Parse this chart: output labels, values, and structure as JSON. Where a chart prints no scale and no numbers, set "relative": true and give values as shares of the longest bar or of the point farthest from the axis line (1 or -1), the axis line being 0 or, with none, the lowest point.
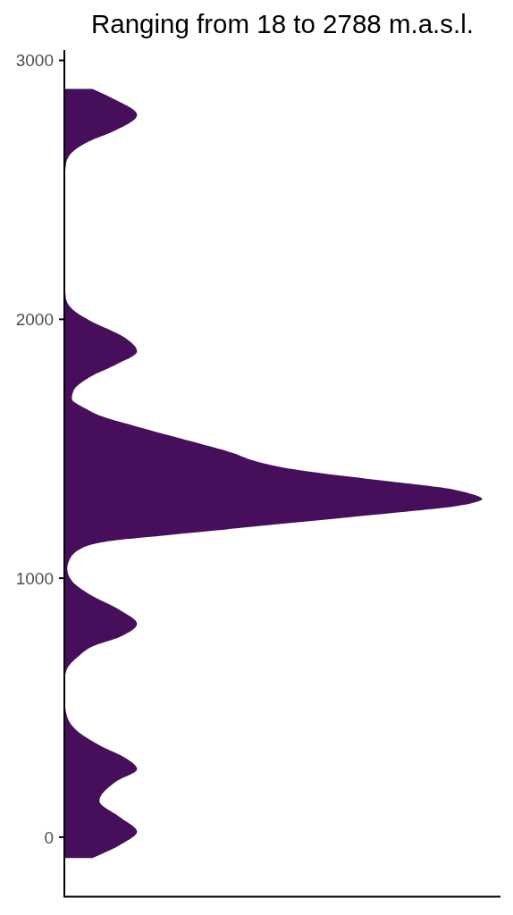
{
  "chart_data": {
    "type": "area",
    "title": "Ranging from 18 to 2788 m.a.s.l.",
    "orientation": "horizontal",
    "relative": true,
    "color": "#470e5b",
    "x": [
      -81,
      -24,
      21,
      76,
      140,
      216,
      263,
      303,
      355,
      417,
      469,
      545,
      610,
      648,
      700,
      736,
      774,
      824,
      876,
      938,
      990,
      1036,
      1070,
      1116,
      1151,
      1162,
      1185,
      1208,
      1231,
      1254,
      1279,
      1292,
      1306,
      1323,
      1346,
      1380,
      1416,
      1450,
      1484,
      1541,
      1587,
      1622,
      1656,
      1693,
      1724,
      1776,
      1826,
      1876,
      1934,
      1990,
      2041,
      2079,
      2117,
      2250,
      2400,
      2538,
      2600,
      2650,
      2688,
      2726,
      2790,
      2852,
      2890
    ],
    "values": [
      0.067,
      0.14,
      0.174,
      0.134,
      0.084,
      0.125,
      0.174,
      0.149,
      0.084,
      0.026,
      0.006,
      0,
      0.001,
      0.006,
      0.035,
      0.067,
      0.134,
      0.174,
      0.134,
      0.06,
      0.018,
      0.007,
      0.012,
      0.042,
      0.147,
      0.219,
      0.364,
      0.508,
      0.653,
      0.797,
      0.94,
      0.98,
      1,
      0.979,
      0.919,
      0.746,
      0.567,
      0.462,
      0.402,
      0.275,
      0.17,
      0.095,
      0.05,
      0.018,
      0.022,
      0.06,
      0.125,
      0.174,
      0.14,
      0.067,
      0.018,
      0.004,
      0.002,
      0.001,
      0.001,
      0.001,
      0.004,
      0.022,
      0.06,
      0.117,
      0.174,
      0.117,
      0.067
    ],
    "ylim": [
      -230,
      3040
    ],
    "yticks": [
      0,
      1000,
      2000,
      3000
    ]
  }
}
